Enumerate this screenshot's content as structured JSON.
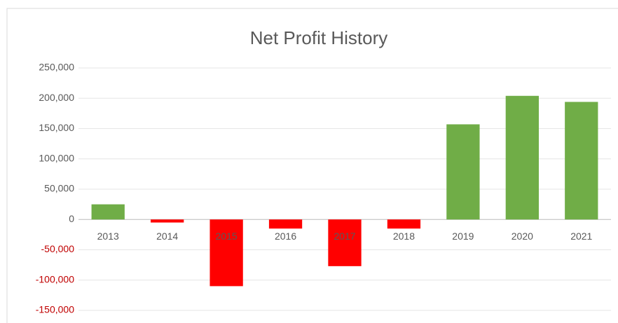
{
  "chart_data": {
    "type": "bar",
    "title": "Net Profit History",
    "categories": [
      "2013",
      "2014",
      "2015",
      "2016",
      "2017",
      "2018",
      "2019",
      "2020",
      "2021"
    ],
    "values": [
      25000,
      -5000,
      -110000,
      -15000,
      -77000,
      -15000,
      157000,
      204000,
      194000
    ],
    "positive_color": "#70ad47",
    "negative_color": "#ff0000",
    "negative_label_color": "#c00000",
    "ylim": [
      -150000,
      250000
    ],
    "yticks": [
      {
        "value": -150000,
        "label": "-150,000"
      },
      {
        "value": -100000,
        "label": "-100,000"
      },
      {
        "value": -50000,
        "label": "-50,000"
      },
      0,
      {
        "value": 50000,
        "label": "50,000"
      },
      {
        "value": 100000,
        "label": "100,000"
      },
      {
        "value": 150000,
        "label": "150,000"
      },
      {
        "value": 200000,
        "label": "200,000"
      },
      {
        "value": 250000,
        "label": "250,000"
      }
    ],
    "grid": true
  }
}
